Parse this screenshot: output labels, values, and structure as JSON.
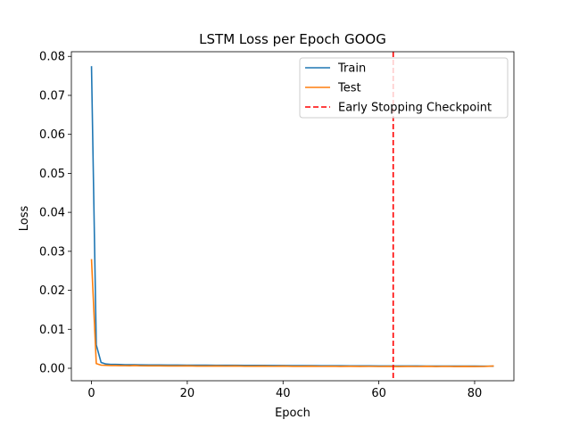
{
  "chart_data": {
    "type": "line",
    "title": "LSTM Loss per Epoch GOOG",
    "xlabel": "Epoch",
    "ylabel": "Loss",
    "xlim": [
      -4.2,
      88.2
    ],
    "ylim": [
      -0.0032,
      0.0812
    ],
    "xticks": [
      0,
      20,
      40,
      60,
      80
    ],
    "xtick_labels": [
      "0",
      "20",
      "40",
      "60",
      "80"
    ],
    "yticks": [
      0.0,
      0.01,
      0.02,
      0.03,
      0.04,
      0.05,
      0.06,
      0.07,
      0.08
    ],
    "ytick_labels": [
      "0.00",
      "0.01",
      "0.02",
      "0.03",
      "0.04",
      "0.05",
      "0.06",
      "0.07",
      "0.08"
    ],
    "grid": false,
    "legend_position": "top-right",
    "series": [
      {
        "name": "Train",
        "color": "#1f77b4",
        "x": [
          0,
          1,
          2,
          3,
          4,
          5,
          6,
          7,
          8,
          9,
          10,
          12,
          14,
          16,
          18,
          20,
          22,
          24,
          26,
          28,
          30,
          32,
          34,
          36,
          38,
          40,
          42,
          44,
          46,
          48,
          50,
          52,
          54,
          56,
          58,
          60,
          62,
          64,
          66,
          68,
          70,
          72,
          74,
          76,
          78,
          80,
          82,
          84
        ],
        "values": [
          0.0775,
          0.006,
          0.0015,
          0.0011,
          0.001,
          0.001,
          0.00095,
          0.00092,
          0.0009,
          0.0009,
          0.00088,
          0.00086,
          0.00085,
          0.00083,
          0.00082,
          0.0008,
          0.00079,
          0.00078,
          0.00077,
          0.00076,
          0.00075,
          0.00074,
          0.00073,
          0.00072,
          0.00071,
          0.0007,
          0.00069,
          0.00068,
          0.00067,
          0.00066,
          0.00065,
          0.00064,
          0.00063,
          0.00062,
          0.00061,
          0.0006,
          0.0006,
          0.00059,
          0.00058,
          0.00058,
          0.00057,
          0.00057,
          0.00056,
          0.00056,
          0.00055,
          0.00055,
          0.00054,
          0.00054
        ]
      },
      {
        "name": "Test",
        "color": "#ff7f0e",
        "x": [
          0,
          1,
          2,
          3,
          4,
          5,
          6,
          7,
          8,
          9,
          10,
          12,
          14,
          16,
          18,
          20,
          22,
          24,
          26,
          28,
          30,
          32,
          34,
          36,
          38,
          40,
          42,
          44,
          46,
          48,
          50,
          52,
          54,
          56,
          58,
          60,
          62,
          64,
          66,
          68,
          70,
          72,
          74,
          76,
          78,
          80,
          82,
          84
        ],
        "values": [
          0.028,
          0.0012,
          0.0008,
          0.00075,
          0.0007,
          0.0007,
          0.00068,
          0.00066,
          0.00065,
          0.0007,
          0.00064,
          0.00062,
          0.00061,
          0.0006,
          0.00058,
          0.00062,
          0.00057,
          0.00056,
          0.0006,
          0.00055,
          0.00058,
          0.00054,
          0.00053,
          0.00056,
          0.00052,
          0.00055,
          0.00051,
          0.0005,
          0.00053,
          0.00049,
          0.00052,
          0.00048,
          0.0005,
          0.00047,
          0.00049,
          0.00046,
          0.00048,
          0.00045,
          0.00047,
          0.00046,
          0.0005,
          0.00045,
          0.00049,
          0.00044,
          0.00048,
          0.00044,
          0.00046,
          0.0006
        ]
      }
    ],
    "vline": {
      "name": "Early Stopping Checkpoint",
      "x": 63,
      "color": "#ff0000",
      "style": "dashed"
    }
  }
}
